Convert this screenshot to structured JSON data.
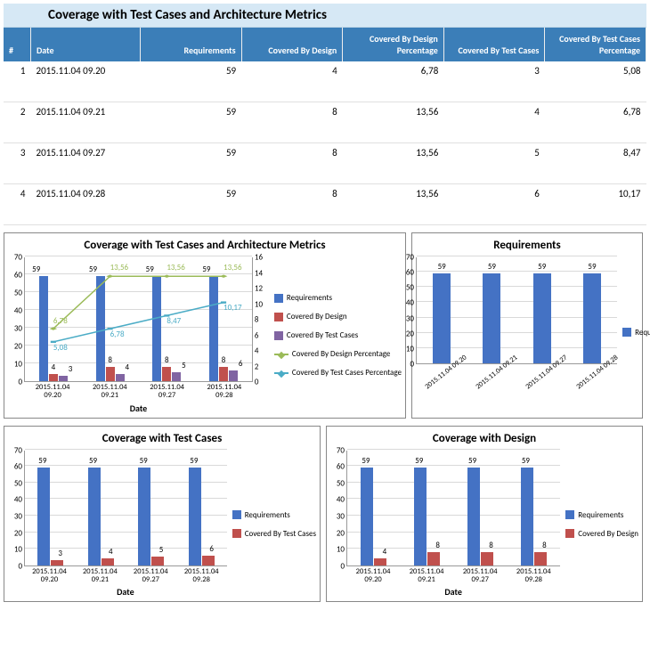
{
  "title": "Coverage with Test Cases and Architecture Metrics",
  "table": {
    "columns": [
      "#",
      "Date",
      "Requirements",
      "Covered By Design",
      "Covered By Design Percentage",
      "Covered By Test Cases",
      "Covered By Test Cases Percentage"
    ],
    "rows": [
      [
        "1",
        "2015.11.04 09.20",
        "59",
        "4",
        "6,78",
        "3",
        "5,08"
      ],
      [
        "2",
        "2015.11.04 09.21",
        "59",
        "8",
        "13,56",
        "4",
        "6,78"
      ],
      [
        "3",
        "2015.11.04 09.27",
        "59",
        "8",
        "13,56",
        "5",
        "8,47"
      ],
      [
        "4",
        "2015.11.04 09.28",
        "59",
        "8",
        "13,56",
        "6",
        "10,17"
      ]
    ]
  },
  "colors": {
    "requirements": "#4472c4",
    "covered_by_design": "#c0504d",
    "covered_by_test_cases": "#8064a2",
    "design_pct_line": "#9bbb59",
    "test_pct_line": "#4bacc6",
    "grid": "#d9d9d9",
    "axis": "#999999",
    "header_bg": "#3b7eb8",
    "title_bg": "#d6e8f5"
  },
  "chart_main": {
    "title": "Coverage with Test Cases and Architecture Metrics",
    "categories": [
      "2015.11.04 09.20",
      "2015.11.04 09.21",
      "2015.11.04 09.27",
      "2015.11.04 09.28"
    ],
    "requirements": [
      59,
      59,
      59,
      59
    ],
    "covered_by_design": [
      4,
      8,
      8,
      8
    ],
    "covered_by_test_cases": [
      3,
      4,
      5,
      6
    ],
    "design_pct": [
      6.78,
      13.56,
      13.56,
      13.56
    ],
    "test_pct": [
      5.08,
      6.78,
      8.47,
      10.17
    ],
    "design_pct_lbl": [
      "6,78",
      "13,56",
      "13,56",
      "13,56"
    ],
    "test_pct_lbl": [
      "5,08",
      "6,78",
      "8,47",
      "10,17"
    ],
    "y_left": {
      "min": 0,
      "max": 70,
      "step": 10
    },
    "y_right": {
      "min": 0,
      "max": 16,
      "step": 2
    },
    "x_label": "Date",
    "legend": [
      "Requirements",
      "Covered By Design",
      "Covered By Test Cases",
      "Covered By Design Percentage",
      "Covered By Test Cases Percentage"
    ]
  },
  "chart_req": {
    "title": "Requirements",
    "categories": [
      "2015.11.04 09.20",
      "2015.11.04 09.21",
      "2015.11.04 09.27",
      "2015.11.04 09.28"
    ],
    "values": [
      59,
      59,
      59,
      59
    ],
    "y": {
      "min": 0,
      "max": 70,
      "step": 10
    },
    "legend": [
      "Requirements"
    ]
  },
  "chart_tc": {
    "title": "Coverage with Test Cases",
    "categories": [
      "2015.11.04 09.20",
      "2015.11.04 09.21",
      "2015.11.04 09.27",
      "2015.11.04 09.28"
    ],
    "requirements": [
      59,
      59,
      59,
      59
    ],
    "tc": [
      3,
      4,
      5,
      6
    ],
    "y": {
      "min": 0,
      "max": 70,
      "step": 10
    },
    "x_label": "Date",
    "legend": [
      "Requirements",
      "Covered By Test Cases"
    ]
  },
  "chart_design": {
    "title": "Coverage with Design",
    "categories": [
      "2015.11.04 09.20",
      "2015.11.04 09.21",
      "2015.11.04 09.27",
      "2015.11.04 09.28"
    ],
    "requirements": [
      59,
      59,
      59,
      59
    ],
    "design": [
      4,
      8,
      8,
      8
    ],
    "y": {
      "min": 0,
      "max": 70,
      "step": 10
    },
    "x_label": "Date",
    "legend": [
      "Requirements",
      "Covered By Design"
    ]
  }
}
